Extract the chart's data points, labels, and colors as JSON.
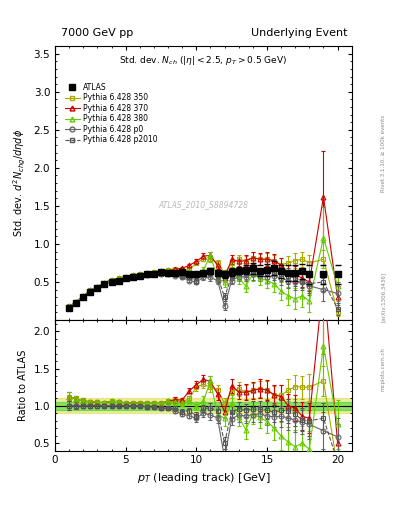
{
  "title_left": "7000 GeV pp",
  "title_right": "Underlying Event",
  "plot_title": "Std. dev. N_{ch} (|\\eta| < 2.5, p_{T} > 0.5 GeV)",
  "ylabel_main": "Std. dev. d$^2$N$_{chg}$/d$\\eta$d$\\phi$",
  "ylabel_ratio": "Ratio to ATLAS",
  "xlabel": "p_{T} (leading track) [GeV]",
  "watermark": "ATLAS_2010_S8894728",
  "right_label": "Rivet 3.1.10, ≥ 100k events",
  "arxiv_label": "[arXiv:1306.3436]",
  "mcplots_label": "mcplots.cern.ch",
  "atlas": {
    "x": [
      1.0,
      1.5,
      2.0,
      2.5,
      3.0,
      3.5,
      4.0,
      4.5,
      5.0,
      5.5,
      6.0,
      6.5,
      7.0,
      7.5,
      8.0,
      8.5,
      9.0,
      9.5,
      10.0,
      10.5,
      11.0,
      11.5,
      12.0,
      12.5,
      13.0,
      13.5,
      14.0,
      14.5,
      15.0,
      15.5,
      16.0,
      16.5,
      17.0,
      17.5,
      18.0,
      19.0,
      20.0
    ],
    "y": [
      0.16,
      0.22,
      0.3,
      0.37,
      0.42,
      0.47,
      0.5,
      0.52,
      0.55,
      0.57,
      0.58,
      0.6,
      0.61,
      0.63,
      0.62,
      0.62,
      0.63,
      0.6,
      0.6,
      0.62,
      0.64,
      0.62,
      0.6,
      0.63,
      0.65,
      0.66,
      0.68,
      0.65,
      0.66,
      0.68,
      0.64,
      0.62,
      0.62,
      0.64,
      0.6,
      0.6,
      0.6
    ],
    "yerr": [
      0.02,
      0.02,
      0.02,
      0.02,
      0.02,
      0.02,
      0.02,
      0.02,
      0.02,
      0.02,
      0.02,
      0.02,
      0.02,
      0.02,
      0.02,
      0.03,
      0.03,
      0.03,
      0.03,
      0.03,
      0.04,
      0.04,
      0.05,
      0.05,
      0.05,
      0.06,
      0.07,
      0.07,
      0.08,
      0.09,
      0.09,
      0.1,
      0.1,
      0.1,
      0.12,
      0.12,
      0.12
    ],
    "color": "#000000",
    "marker": "s",
    "label": "ATLAS"
  },
  "py350": {
    "x": [
      1.0,
      1.5,
      2.0,
      2.5,
      3.0,
      3.5,
      4.0,
      4.5,
      5.0,
      5.5,
      6.0,
      6.5,
      7.0,
      7.5,
      8.0,
      8.5,
      9.0,
      9.5,
      10.0,
      10.5,
      11.0,
      11.5,
      12.0,
      12.5,
      13.0,
      13.5,
      14.0,
      14.5,
      15.0,
      15.5,
      16.0,
      16.5,
      17.0,
      17.5,
      18.0,
      19.0,
      20.0
    ],
    "y": [
      0.18,
      0.24,
      0.32,
      0.39,
      0.44,
      0.49,
      0.53,
      0.55,
      0.57,
      0.59,
      0.6,
      0.62,
      0.63,
      0.65,
      0.66,
      0.67,
      0.66,
      0.66,
      0.75,
      0.8,
      0.8,
      0.75,
      0.62,
      0.75,
      0.8,
      0.78,
      0.82,
      0.8,
      0.8,
      0.78,
      0.73,
      0.75,
      0.78,
      0.8,
      0.75,
      0.8,
      0.1
    ],
    "yerr": [
      0.01,
      0.01,
      0.01,
      0.01,
      0.01,
      0.01,
      0.01,
      0.01,
      0.01,
      0.01,
      0.01,
      0.01,
      0.01,
      0.01,
      0.01,
      0.02,
      0.02,
      0.02,
      0.03,
      0.03,
      0.04,
      0.04,
      0.04,
      0.05,
      0.06,
      0.06,
      0.07,
      0.07,
      0.08,
      0.08,
      0.09,
      0.09,
      0.1,
      0.1,
      0.11,
      0.12,
      0.05
    ],
    "color": "#aaaa00",
    "marker": "s",
    "label": "Pythia 6.428 350"
  },
  "py370": {
    "x": [
      1.0,
      1.5,
      2.0,
      2.5,
      3.0,
      3.5,
      4.0,
      4.5,
      5.0,
      5.5,
      6.0,
      6.5,
      7.0,
      7.5,
      8.0,
      8.5,
      9.0,
      9.5,
      10.0,
      10.5,
      11.0,
      11.5,
      12.0,
      12.5,
      13.0,
      13.5,
      14.0,
      14.5,
      15.0,
      15.5,
      16.0,
      16.5,
      17.0,
      17.5,
      18.0,
      19.0,
      20.0
    ],
    "y": [
      0.18,
      0.24,
      0.32,
      0.39,
      0.44,
      0.49,
      0.53,
      0.55,
      0.57,
      0.59,
      0.6,
      0.62,
      0.63,
      0.65,
      0.66,
      0.67,
      0.68,
      0.72,
      0.77,
      0.84,
      0.85,
      0.72,
      0.55,
      0.8,
      0.77,
      0.78,
      0.82,
      0.8,
      0.8,
      0.78,
      0.72,
      0.62,
      0.6,
      0.55,
      0.5,
      1.62,
      0.3
    ],
    "yerr": [
      0.01,
      0.01,
      0.01,
      0.01,
      0.01,
      0.01,
      0.01,
      0.01,
      0.01,
      0.01,
      0.01,
      0.01,
      0.01,
      0.01,
      0.01,
      0.02,
      0.02,
      0.02,
      0.03,
      0.04,
      0.05,
      0.05,
      0.05,
      0.06,
      0.06,
      0.07,
      0.08,
      0.08,
      0.09,
      0.09,
      0.1,
      0.1,
      0.11,
      0.12,
      0.12,
      0.6,
      0.15
    ],
    "color": "#cc0000",
    "marker": "^",
    "label": "Pythia 6.428 370"
  },
  "py380": {
    "x": [
      1.0,
      1.5,
      2.0,
      2.5,
      3.0,
      3.5,
      4.0,
      4.5,
      5.0,
      5.5,
      6.0,
      6.5,
      7.0,
      7.5,
      8.0,
      8.5,
      9.0,
      9.5,
      10.0,
      10.5,
      11.0,
      11.5,
      12.0,
      12.5,
      13.0,
      13.5,
      14.0,
      14.5,
      15.0,
      15.5,
      16.0,
      16.5,
      17.0,
      17.5,
      18.0,
      19.0,
      20.0
    ],
    "y": [
      0.18,
      0.24,
      0.32,
      0.39,
      0.44,
      0.49,
      0.53,
      0.55,
      0.57,
      0.59,
      0.6,
      0.62,
      0.63,
      0.65,
      0.66,
      0.65,
      0.65,
      0.64,
      0.6,
      0.66,
      0.85,
      0.55,
      0.5,
      0.65,
      0.55,
      0.45,
      0.6,
      0.55,
      0.52,
      0.48,
      0.38,
      0.32,
      0.28,
      0.32,
      0.25,
      1.08,
      0.45
    ],
    "yerr": [
      0.01,
      0.01,
      0.01,
      0.01,
      0.01,
      0.01,
      0.01,
      0.01,
      0.01,
      0.01,
      0.01,
      0.01,
      0.01,
      0.01,
      0.01,
      0.02,
      0.02,
      0.02,
      0.03,
      0.04,
      0.05,
      0.05,
      0.06,
      0.07,
      0.08,
      0.08,
      0.09,
      0.09,
      0.1,
      0.11,
      0.12,
      0.12,
      0.14,
      0.15,
      0.15,
      0.4,
      0.2
    ],
    "color": "#66cc00",
    "marker": "^",
    "label": "Pythia 6.428 380"
  },
  "pyp0": {
    "x": [
      1.0,
      1.5,
      2.0,
      2.5,
      3.0,
      3.5,
      4.0,
      4.5,
      5.0,
      5.5,
      6.0,
      6.5,
      7.0,
      7.5,
      8.0,
      8.5,
      9.0,
      9.5,
      10.0,
      10.5,
      11.0,
      11.5,
      12.0,
      12.5,
      13.0,
      13.5,
      14.0,
      14.5,
      15.0,
      15.5,
      16.0,
      16.5,
      17.0,
      17.5,
      18.0,
      19.0,
      20.0
    ],
    "y": [
      0.16,
      0.22,
      0.3,
      0.37,
      0.42,
      0.47,
      0.5,
      0.52,
      0.55,
      0.57,
      0.58,
      0.59,
      0.6,
      0.61,
      0.6,
      0.58,
      0.56,
      0.52,
      0.5,
      0.56,
      0.56,
      0.52,
      0.18,
      0.52,
      0.57,
      0.57,
      0.6,
      0.58,
      0.57,
      0.58,
      0.55,
      0.52,
      0.5,
      0.5,
      0.45,
      0.4,
      0.35
    ],
    "yerr": [
      0.01,
      0.01,
      0.01,
      0.01,
      0.01,
      0.01,
      0.01,
      0.01,
      0.01,
      0.01,
      0.01,
      0.01,
      0.01,
      0.01,
      0.01,
      0.02,
      0.02,
      0.02,
      0.03,
      0.03,
      0.04,
      0.04,
      0.05,
      0.05,
      0.06,
      0.06,
      0.07,
      0.07,
      0.08,
      0.09,
      0.09,
      0.1,
      0.1,
      0.1,
      0.12,
      0.15,
      0.15
    ],
    "color": "#666666",
    "marker": "o",
    "label": "Pythia 6.428 p0"
  },
  "pyp2010": {
    "x": [
      1.0,
      1.5,
      2.0,
      2.5,
      3.0,
      3.5,
      4.0,
      4.5,
      5.0,
      5.5,
      6.0,
      6.5,
      7.0,
      7.5,
      8.0,
      8.5,
      9.0,
      9.5,
      10.0,
      10.5,
      11.0,
      11.5,
      12.0,
      12.5,
      13.0,
      13.5,
      14.0,
      14.5,
      15.0,
      15.5,
      16.0,
      16.5,
      17.0,
      17.5,
      18.0,
      19.0,
      20.0
    ],
    "y": [
      0.16,
      0.22,
      0.3,
      0.37,
      0.42,
      0.47,
      0.5,
      0.52,
      0.55,
      0.57,
      0.58,
      0.59,
      0.6,
      0.61,
      0.6,
      0.6,
      0.58,
      0.56,
      0.52,
      0.6,
      0.62,
      0.58,
      0.3,
      0.58,
      0.62,
      0.62,
      0.65,
      0.62,
      0.62,
      0.62,
      0.6,
      0.58,
      0.55,
      0.52,
      0.48,
      0.5,
      0.15
    ],
    "yerr": [
      0.01,
      0.01,
      0.01,
      0.01,
      0.01,
      0.01,
      0.01,
      0.01,
      0.01,
      0.01,
      0.01,
      0.01,
      0.01,
      0.01,
      0.01,
      0.02,
      0.02,
      0.02,
      0.03,
      0.03,
      0.04,
      0.04,
      0.05,
      0.05,
      0.06,
      0.06,
      0.07,
      0.07,
      0.08,
      0.09,
      0.09,
      0.1,
      0.1,
      0.1,
      0.12,
      0.12,
      0.08
    ],
    "color": "#555555",
    "marker": "s",
    "label": "Pythia 6.428 p2010"
  },
  "band_green": {
    "alpha": 0.4,
    "color": "#00cc00"
  },
  "band_yellow": {
    "alpha": 0.35,
    "color": "#cccc00"
  },
  "xlim": [
    0,
    21
  ],
  "ylim_main": [
    0,
    3.6
  ],
  "ylim_ratio": [
    0.4,
    2.15
  ],
  "yticks_main": [
    0.5,
    1.0,
    1.5,
    2.0,
    2.5,
    3.0,
    3.5
  ],
  "yticks_ratio": [
    0.5,
    1.0,
    1.5,
    2.0
  ],
  "xticks": [
    0,
    5,
    10,
    15,
    20
  ]
}
